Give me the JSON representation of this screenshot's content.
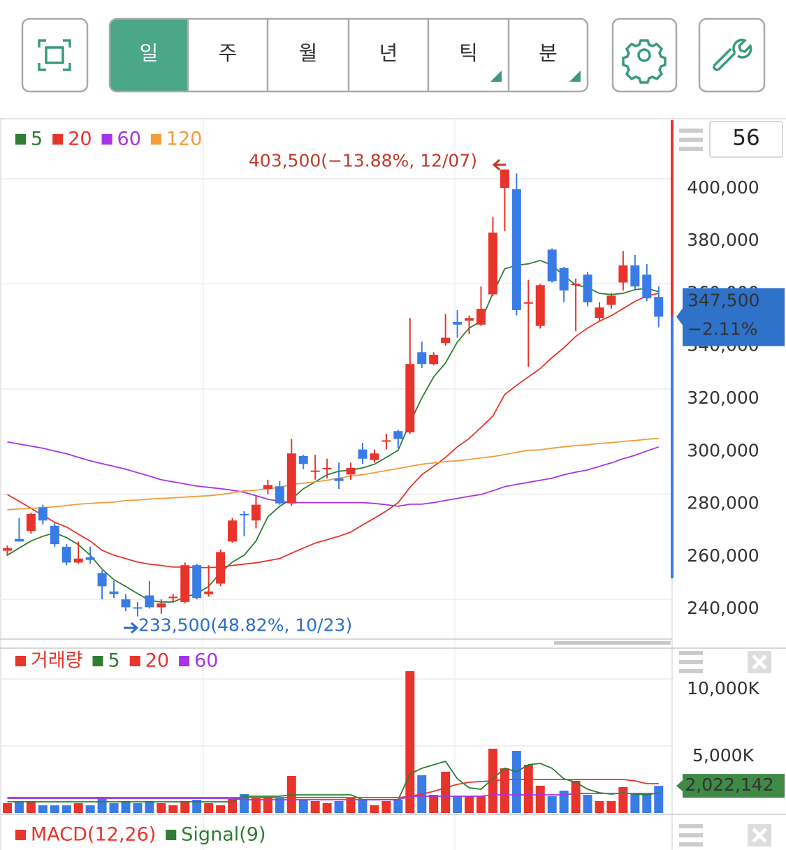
{
  "toolbar": {
    "tabs": [
      "일",
      "주",
      "월",
      "년",
      "틱",
      "분"
    ],
    "active_tab": 0
  },
  "chart_data": [
    {
      "type": "candlestick",
      "up_color": "#e8342b",
      "down_color": "#3a7ce6",
      "open": [
        258500,
        263000,
        266000,
        275000,
        268000,
        260000,
        254000,
        256000,
        250000,
        243000,
        240000,
        237000,
        241500,
        237000,
        240500,
        239000,
        253000,
        242000,
        246000,
        262000,
        272500,
        270000,
        282000,
        283000,
        276500,
        294500,
        288500,
        289500,
        286000,
        287500,
        297000,
        293000,
        300000,
        304000,
        303500,
        334000,
        329500,
        337500,
        345500,
        346000,
        344500,
        356000,
        396500,
        396000,
        352500,
        344000,
        373000,
        366000,
        359500,
        363500,
        347000,
        352000,
        360500,
        367000,
        363500,
        355000
      ],
      "high": [
        260500,
        271000,
        273000,
        276000,
        269000,
        261000,
        262000,
        260000,
        251000,
        247000,
        242000,
        239000,
        247000,
        240000,
        242000,
        254000,
        253500,
        253000,
        259000,
        271000,
        273500,
        279500,
        285500,
        285000,
        301000,
        295000,
        295000,
        293500,
        292000,
        292000,
        299500,
        297000,
        303000,
        304500,
        347000,
        338000,
        334000,
        348500,
        350000,
        348000,
        359000,
        385500,
        403500,
        402000,
        361500,
        360000,
        373500,
        366500,
        362000,
        364500,
        353000,
        356500,
        372500,
        371000,
        367500,
        359000
      ],
      "low": [
        256500,
        262000,
        265000,
        268500,
        260000,
        253000,
        253500,
        253500,
        240000,
        240500,
        235500,
        233500,
        236500,
        234500,
        239000,
        238500,
        240000,
        241000,
        245000,
        261500,
        264000,
        267000,
        280000,
        276000,
        275500,
        289500,
        285500,
        286000,
        282000,
        285500,
        291500,
        292000,
        297000,
        297500,
        303000,
        328000,
        329000,
        336500,
        339500,
        341000,
        344000,
        355500,
        380000,
        348000,
        328500,
        343000,
        360500,
        353000,
        342000,
        351500,
        346000,
        350500,
        357500,
        358000,
        353500,
        343500
      ],
      "close": [
        259500,
        262000,
        272500,
        270000,
        261000,
        254000,
        255500,
        255000,
        245000,
        242000,
        237000,
        236500,
        237000,
        238500,
        241000,
        253000,
        240500,
        243000,
        258000,
        270000,
        272000,
        276000,
        283500,
        276500,
        295500,
        291500,
        289000,
        290000,
        285000,
        290000,
        293500,
        295500,
        300500,
        301000,
        329500,
        329500,
        333000,
        339500,
        344500,
        347000,
        350500,
        379500,
        403500,
        350000,
        353000,
        359500,
        361000,
        357500,
        360000,
        353000,
        351000,
        355500,
        367000,
        359000,
        354500,
        347500
      ],
      "series": [
        {
          "name": "5",
          "color": "#2e7d32",
          "values": [
            256800,
            259500,
            262200,
            264000,
            265300,
            263500,
            260800,
            256800,
            251500,
            247500,
            244900,
            242200,
            239600,
            239000,
            239000,
            240900,
            242200,
            244900,
            250200,
            254200,
            256800,
            262200,
            271400,
            275400,
            278100,
            282100,
            284700,
            287400,
            288700,
            289200,
            290000,
            291400,
            294000,
            296700,
            307300,
            316600,
            324600,
            329900,
            337900,
            343200,
            345800,
            356400,
            365700,
            367100,
            367600,
            368900,
            367100,
            363100,
            359600,
            358600,
            356400,
            355900,
            356400,
            357800,
            358300,
            357000
          ]
        },
        {
          "name": "20",
          "color": "#e8342b",
          "values": [
            279900,
            277300,
            274600,
            272000,
            269300,
            267500,
            264800,
            262200,
            258700,
            256800,
            255500,
            254200,
            253400,
            252900,
            252300,
            252300,
            252100,
            252100,
            252300,
            252900,
            253400,
            253900,
            254700,
            255500,
            257600,
            259500,
            261400,
            262700,
            264000,
            265600,
            268300,
            270900,
            273600,
            276800,
            282600,
            287400,
            290600,
            294000,
            298000,
            301200,
            305400,
            309700,
            317900,
            321400,
            324600,
            327800,
            332000,
            335700,
            340000,
            343200,
            345800,
            347900,
            350600,
            353300,
            355400,
            356400
          ]
        },
        {
          "name": "60",
          "color": "#a633e8",
          "values": [
            299900,
            299100,
            298300,
            297500,
            296400,
            295400,
            294000,
            292700,
            291600,
            290600,
            289500,
            288200,
            286900,
            285500,
            284700,
            283900,
            283100,
            282600,
            282100,
            281500,
            280700,
            279400,
            278100,
            277300,
            276800,
            276800,
            276800,
            276800,
            276800,
            276800,
            276800,
            276500,
            276000,
            275400,
            276200,
            276200,
            276800,
            277600,
            278400,
            279200,
            279900,
            281300,
            282900,
            283700,
            284500,
            285300,
            286100,
            287400,
            288400,
            289200,
            290600,
            291900,
            293500,
            294800,
            296400,
            298000
          ]
        },
        {
          "name": "120",
          "color": "#f29d38",
          "values": [
            274100,
            274400,
            274600,
            274900,
            275200,
            275700,
            276200,
            276500,
            276800,
            277000,
            277600,
            277800,
            278100,
            278400,
            278600,
            278900,
            279200,
            279400,
            279900,
            280500,
            281300,
            281500,
            282100,
            282600,
            283700,
            284200,
            284700,
            285300,
            286100,
            286900,
            287400,
            288200,
            289000,
            289800,
            290600,
            291400,
            291900,
            292400,
            292700,
            293200,
            293800,
            294300,
            295100,
            295900,
            296700,
            296900,
            297500,
            298000,
            298500,
            298800,
            299300,
            299600,
            300100,
            300400,
            300900,
            301200
          ]
        }
      ],
      "ylim": [
        224900,
        422800
      ],
      "yticks": [
        {
          "value": 240000,
          "label": "240,000"
        },
        {
          "value": 260000,
          "label": "260,000"
        },
        {
          "value": 280000,
          "label": "280,000"
        },
        {
          "value": 300000,
          "label": "300,000"
        },
        {
          "value": 320000,
          "label": "320,000"
        },
        {
          "value": 340000,
          "label": "340,000"
        },
        {
          "value": 360000,
          "label": "360,000"
        },
        {
          "value": 380000,
          "label": "380,000"
        },
        {
          "value": 400000,
          "label": "400,000"
        }
      ],
      "grid": true,
      "annotations": [
        {
          "text": "403,500(−13.88%, 12/07)",
          "value": 403500,
          "color": "#c0392b"
        },
        {
          "text": "233,500(48.82%, 10/23)",
          "value": 233500,
          "color": "#2a6fc9"
        }
      ],
      "last_price": {
        "value": 347500,
        "label": "347,500"
      },
      "change": "−2.11%",
      "badge_color": "#2f72c9",
      "visible_count": 56
    },
    {
      "type": "bar",
      "name": "거래량",
      "color": "#e8342b",
      "values": [
        729000,
        885000,
        885000,
        573000,
        573000,
        573000,
        729000,
        573000,
        1198000,
        729000,
        885000,
        729000,
        885000,
        729000,
        573000,
        885000,
        990000,
        729000,
        573000,
        1042000,
        1406000,
        1094000,
        1198000,
        1094000,
        2760000,
        990000,
        885000,
        729000,
        885000,
        1094000,
        990000,
        573000,
        885000,
        990000,
        10573000,
        2813000,
        1354000,
        3073000,
        1250000,
        1250000,
        1250000,
        4792000,
        3333000,
        4635000,
        3594000,
        2031000,
        1250000,
        1667000,
        2396000,
        1354000,
        885000,
        885000,
        1927000,
        1406000,
        1406000,
        2022142
      ],
      "series": [
        {
          "name": "5",
          "color": "#2e7d32",
          "values": [
            833000,
            833000,
            833000,
            833000,
            833000,
            833000,
            833000,
            833000,
            833000,
            833000,
            833000,
            833000,
            833000,
            833000,
            833000,
            833000,
            833000,
            833000,
            833000,
            833000,
            1250000,
            1250000,
            1250000,
            1250000,
            1354000,
            1354000,
            1354000,
            1354000,
            1354000,
            1354000,
            990000,
            990000,
            990000,
            990000,
            2917000,
            3333000,
            3594000,
            3854000,
            2552000,
            1875000,
            1771000,
            2552000,
            3333000,
            3073000,
            3594000,
            3698000,
            3333000,
            2552000,
            2292000,
            1771000,
            1510000,
            1406000,
            1510000,
            1406000,
            1354000,
            1510000
          ]
        },
        {
          "name": "20",
          "color": "#e8342b",
          "values": [
            1146000,
            1146000,
            1146000,
            1146000,
            1146000,
            1146000,
            1146000,
            1146000,
            1146000,
            1146000,
            1146000,
            1146000,
            1146000,
            1146000,
            1146000,
            1146000,
            1146000,
            1146000,
            1146000,
            1146000,
            1146000,
            1146000,
            1146000,
            1146000,
            1146000,
            1146000,
            1146000,
            1146000,
            1146000,
            1146000,
            1146000,
            1146000,
            1146000,
            1146000,
            1250000,
            1406000,
            1615000,
            1875000,
            2135000,
            2292000,
            2344000,
            2396000,
            2500000,
            2500000,
            2500000,
            2500000,
            2500000,
            2500000,
            2500000,
            2500000,
            2500000,
            2500000,
            2500000,
            2396000,
            2188000,
            2188000
          ]
        },
        {
          "name": "60",
          "color": "#a633e8",
          "values": [
            1094000,
            1094000,
            1094000,
            1094000,
            1094000,
            1094000,
            1094000,
            1094000,
            1094000,
            1094000,
            1094000,
            1094000,
            1094000,
            1094000,
            1094000,
            1094000,
            1094000,
            1094000,
            1094000,
            1094000,
            990000,
            990000,
            990000,
            990000,
            990000,
            990000,
            990000,
            990000,
            990000,
            990000,
            990000,
            990000,
            990000,
            990000,
            1250000,
            1250000,
            1250000,
            1250000,
            1250000,
            1250000,
            1250000,
            1354000,
            1354000,
            1354000,
            1354000,
            1354000,
            1354000,
            1354000,
            1458000,
            1458000,
            1458000,
            1458000,
            1458000,
            1458000,
            1458000,
            1458000
          ]
        }
      ],
      "ylim": [
        0,
        12187000
      ],
      "yticks": [
        {
          "value": 5000000,
          "label": "5,000K"
        },
        {
          "value": 10000000,
          "label": "10,000K"
        }
      ],
      "grid": true,
      "last_value": {
        "value": 2022142,
        "label": "2,022,142"
      },
      "badge_color": "#3f8a45"
    },
    {
      "type": "line",
      "series": [
        {
          "name": "MACD(12,26)",
          "color": "#e8342b"
        },
        {
          "name": "Signal(9)",
          "color": "#2e7d32"
        }
      ]
    }
  ]
}
